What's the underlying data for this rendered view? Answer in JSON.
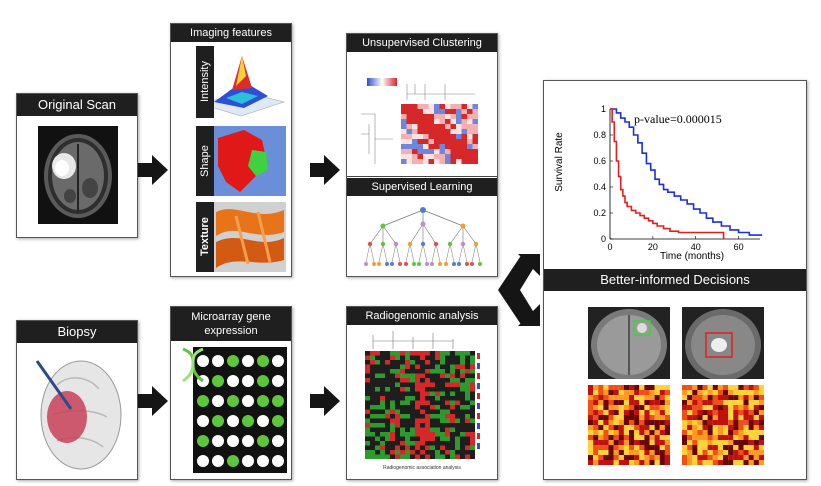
{
  "panels": {
    "original_scan": "Original Scan",
    "imaging_features": "Imaging features",
    "feature_intensity": "Intensity",
    "feature_shape": "Shape",
    "feature_texture": "Texture",
    "unsupervised": "Unsupervised Clustering",
    "supervised": "Supervised Learning",
    "biopsy": "Biopsy",
    "microarray": "Microarray gene expression",
    "radiogenomic": "Radiogenomic analysis",
    "radiogenomic_caption": "Radiogenomic association analysis",
    "decisions": "Better-informed Decisions"
  },
  "colors": {
    "header_bg": "#1f1f1f",
    "km_blue": "#1f2fd6",
    "km_red": "#e02020",
    "microarray_green": "#5ec63a",
    "heatmap_red": "#d62828",
    "heatmap_blue": "#3050c8"
  },
  "microarray_grid": [
    [
      0,
      0,
      1,
      0,
      1,
      0
    ],
    [
      0,
      1,
      0,
      0,
      1,
      0
    ],
    [
      1,
      0,
      1,
      0,
      1,
      1
    ],
    [
      0,
      1,
      0,
      1,
      0,
      1
    ],
    [
      1,
      0,
      0,
      0,
      1,
      0
    ],
    [
      0,
      0,
      1,
      0,
      0,
      0
    ]
  ],
  "chart_data": {
    "type": "line",
    "ylabel": "Survival Rate",
    "xlabel": "Time (months)",
    "annotation": "p-value=0.000015",
    "xlim": [
      0,
      70
    ],
    "ylim": [
      0,
      1
    ],
    "xticks": [
      0,
      20,
      40,
      60
    ],
    "yticks": [
      0,
      0.2,
      0.4,
      0.6,
      0.8,
      1
    ],
    "series": [
      {
        "color": "#1f2fd6",
        "x": [
          0,
          3,
          5,
          7,
          9,
          11,
          13,
          15,
          17,
          19,
          21,
          23,
          25,
          27,
          30,
          33,
          36,
          39,
          42,
          45,
          48,
          52,
          56,
          60,
          65,
          71
        ],
        "y": [
          1,
          0.97,
          0.93,
          0.9,
          0.86,
          0.8,
          0.74,
          0.66,
          0.58,
          0.53,
          0.46,
          0.42,
          0.38,
          0.36,
          0.33,
          0.3,
          0.27,
          0.23,
          0.2,
          0.16,
          0.13,
          0.1,
          0.07,
          0.05,
          0.03,
          0.03
        ]
      },
      {
        "color": "#e02020",
        "x": [
          0,
          1,
          2,
          3,
          4,
          5,
          6,
          7,
          8,
          10,
          12,
          14,
          16,
          18,
          20,
          22,
          25,
          28,
          32,
          38,
          45,
          53
        ],
        "y": [
          1,
          0.9,
          0.75,
          0.6,
          0.48,
          0.38,
          0.33,
          0.28,
          0.25,
          0.22,
          0.2,
          0.18,
          0.16,
          0.14,
          0.12,
          0.1,
          0.08,
          0.06,
          0.05,
          0.05,
          0.05,
          0
        ]
      }
    ]
  }
}
